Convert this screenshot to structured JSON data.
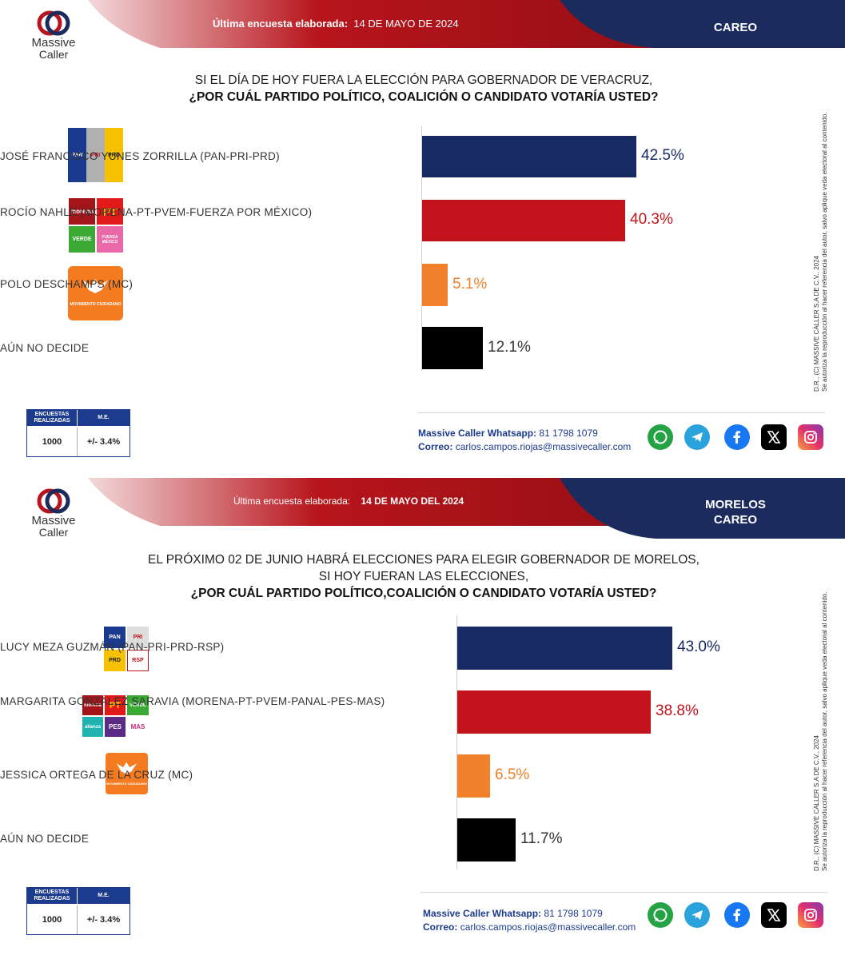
{
  "panels": [
    {
      "header": {
        "survey_label": "Última encuesta elaborada:",
        "survey_date": "14 DE MAYO DE 2024",
        "right_title": "CAREO"
      },
      "logo": {
        "line1": "Massive",
        "line2": "Caller"
      },
      "question": {
        "line1": "SI EL DÍA DE HOY FUERA LA ELECCIÓN PARA GOBERNADOR DE VERACRUZ,",
        "line2": "",
        "bold": "¿POR CUÁL PARTIDO POLÍTICO, COALICIÓN O CANDIDATO VOTARÍA USTED?"
      },
      "stats": {
        "h1": "ENCUESTAS REALIZADAS",
        "h2": "M.E.",
        "v1": "1000",
        "v2": "+/- 3.4%"
      },
      "contact": {
        "whatsapp_label": "Massive Caller Whatsapp:",
        "whatsapp": "81 1798 1079",
        "email_label": "Correo:",
        "email": "carlos.campos.riojas@massivecaller.com"
      },
      "vertical_text": {
        "line1": "D.R., (C) MASSIVE CALLER S.A DE C.V., 2024",
        "line2": "Se autoriza la reproducción al hacer referencia del autor, salvo aplique veda electoral al contenido."
      }
    },
    {
      "header": {
        "survey_label": "Última encuesta elaborada:",
        "survey_date": "14 DE MAYO DEL 2024",
        "right_title": "MORELOS",
        "right_title2": "CAREO"
      },
      "logo": {
        "line1": "Massive",
        "line2": "Caller"
      },
      "question": {
        "line1": "EL PRÓXIMO 02 DE JUNIO HABRÁ ELECCIONES PARA ELEGIR GOBERNADOR DE MORELOS,",
        "line2": "SI HOY FUERAN LAS ELECCIONES,",
        "bold": "¿POR CUÁL PARTIDO POLÍTICO,COALICIÓN  O CANDIDATO  VOTARÍA USTED?"
      },
      "stats": {
        "h1": "ENCUESTAS REALIZADAS",
        "h2": "M.E.",
        "v1": "1000",
        "v2": "+/- 3.4%"
      },
      "contact": {
        "whatsapp_label": "Massive Caller Whatsapp:",
        "whatsapp": "81 1798 1079",
        "email_label": "Correo:",
        "email": "carlos.campos.riojas@massivecaller.com"
      },
      "vertical_text": {
        "line1": "D.R., (C) MASSIVE CALLER S.A DE C.V., 2024",
        "line2": "Se autoriza la reproducción al hacer referencia del autor, salvo aplique veda electoral al contenido."
      }
    }
  ],
  "party_logos": {
    "p1_r1": [
      "PAN",
      "PRI",
      "PRD"
    ],
    "p1_r2": [
      "morena",
      "PT",
      "VERDE",
      "FUERZA MÉXICO"
    ],
    "p1_r3": [
      "MOVIMIENTO CIUDADANO"
    ],
    "p2_r1": [
      "PAN",
      "PRI",
      "PRD",
      "RSP"
    ],
    "p2_r2": [
      "morena",
      "PT",
      "VERDE",
      "alianza",
      "PES",
      "MAS"
    ],
    "p2_r3": [
      "MOVIMIENTO CIUDADANO"
    ]
  },
  "chart_data": [
    {
      "type": "bar",
      "orientation": "horizontal",
      "categories": [
        "JOSÉ FRANCISCO YUNES ZORRILLA (PAN-PRI-PRD)",
        "ROCÍO NAHLE (MORENA-PT-PVEM-FUERZA POR MÉXICO)",
        "POLO DESCHAMPS (MC)",
        "AÚN NO DECIDE"
      ],
      "values": [
        42.5,
        40.3,
        5.1,
        12.1
      ],
      "labels": [
        "42.5%",
        "40.3%",
        "5.1%",
        "12.1%"
      ],
      "colors": [
        "#172a63",
        "#c3131c",
        "#f0802a",
        "#000000"
      ],
      "label_colors": [
        "#172a63",
        "#c3131c",
        "#f0802a",
        "#333333"
      ]
    },
    {
      "type": "bar",
      "orientation": "horizontal",
      "categories": [
        "LUCY MEZA GUZMÁN (PAN-PRI-PRD-RSP)",
        "MARGARITA GONZÁLEZ SARAVIA (MORENA-PT-PVEM-PANAL-PES-MAS)",
        "JESSICA ORTEGA DE LA CRUZ (MC)",
        "AÚN NO DECIDE"
      ],
      "values": [
        43.0,
        38.8,
        6.5,
        11.7
      ],
      "labels": [
        "43.0%",
        "38.8%",
        "6.5%",
        "11.7%"
      ],
      "colors": [
        "#172a63",
        "#c3131c",
        "#f0802a",
        "#000000"
      ],
      "label_colors": [
        "#172a63",
        "#c3131c",
        "#f0802a",
        "#333333"
      ]
    }
  ],
  "social_icons": [
    "whatsapp-icon",
    "telegram-icon",
    "facebook-icon",
    "x-icon",
    "instagram-icon"
  ]
}
